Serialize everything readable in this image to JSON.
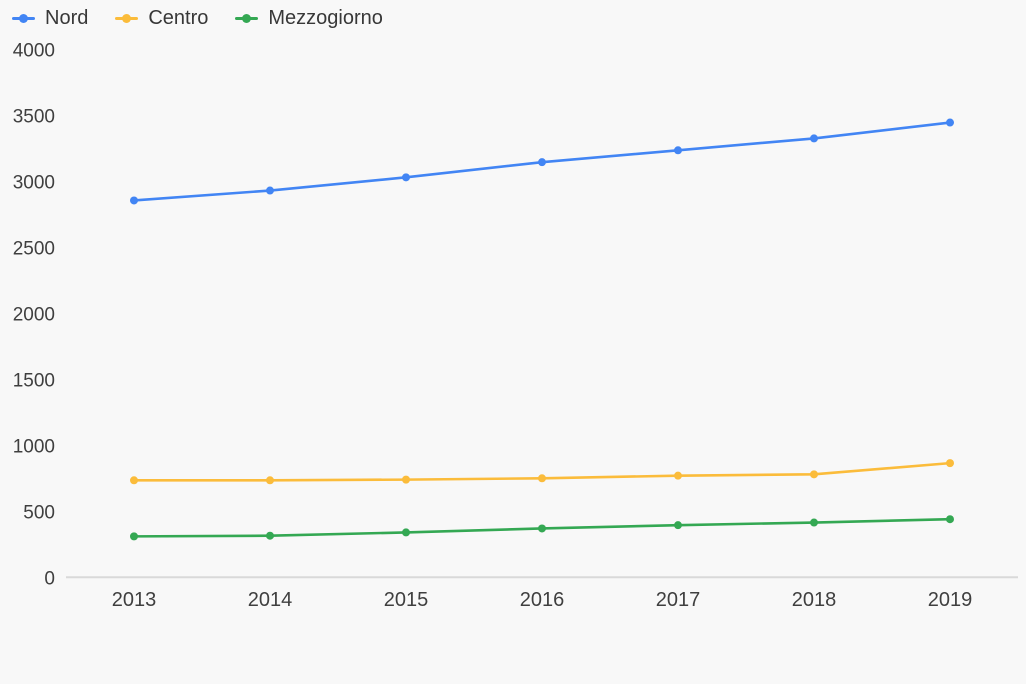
{
  "chart_data": {
    "type": "line",
    "title": "",
    "xlabel": "",
    "ylabel": "",
    "x": [
      "2013",
      "2014",
      "2015",
      "2016",
      "2017",
      "2018",
      "2019"
    ],
    "series": [
      {
        "name": "Nord",
        "color": "#4285f4",
        "values": [
          2855,
          2930,
          3030,
          3145,
          3235,
          3325,
          3445
        ]
      },
      {
        "name": "Centro",
        "color": "#fbbc3b",
        "values": [
          735,
          735,
          740,
          750,
          770,
          780,
          865
        ]
      },
      {
        "name": "Mezzogiorno",
        "color": "#34a853",
        "values": [
          310,
          315,
          340,
          370,
          395,
          415,
          440
        ]
      }
    ],
    "ylim": [
      0,
      4000
    ],
    "ytick_step": 500,
    "yticks": [
      "0",
      "500",
      "1000",
      "1500",
      "2000",
      "2500",
      "3000",
      "3500",
      "4000"
    ],
    "grid": false,
    "legend_position": "top-left"
  },
  "colors": {
    "background": "#f8f8f8",
    "axis_line": "#d9d9d9",
    "tick_text": "#3f3f3f",
    "legend_text": "#383838"
  }
}
